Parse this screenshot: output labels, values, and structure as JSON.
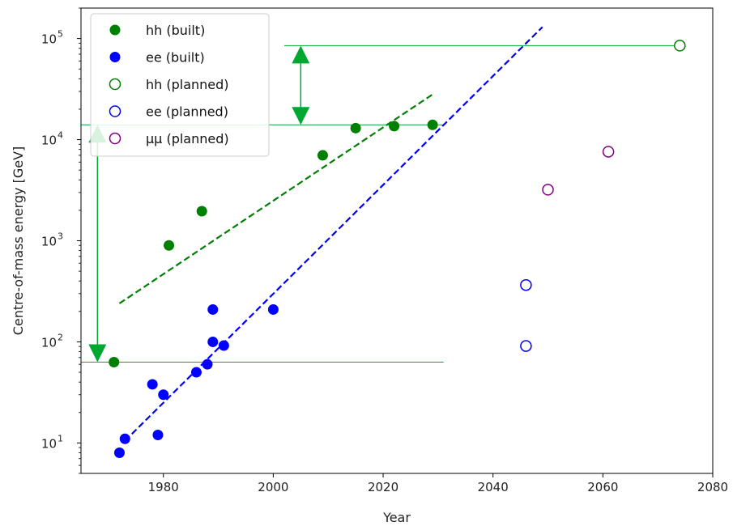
{
  "chart_data": {
    "type": "scatter",
    "xlabel": "Year",
    "ylabel": "Centre-of-mass energy [GeV]",
    "xlim": [
      1965,
      2080
    ],
    "ylim": [
      5,
      200000
    ],
    "yscale": "log",
    "grid": false,
    "legend_position": "top-left",
    "x_ticks": [
      {
        "value": 1980,
        "label": "1980"
      },
      {
        "value": 2000,
        "label": "2000"
      },
      {
        "value": 2020,
        "label": "2020"
      },
      {
        "value": 2040,
        "label": "2040"
      },
      {
        "value": 2060,
        "label": "2060"
      },
      {
        "value": 2080,
        "label": "2080"
      }
    ],
    "y_ticks": [
      {
        "value": 10,
        "base": "10",
        "exp": "1"
      },
      {
        "value": 100,
        "base": "10",
        "exp": "2"
      },
      {
        "value": 1000,
        "base": "10",
        "exp": "3"
      },
      {
        "value": 10000,
        "base": "10",
        "exp": "4"
      },
      {
        "value": 100000,
        "base": "10",
        "exp": "5"
      }
    ],
    "series": [
      {
        "name": "hh (built)",
        "marker": "filled",
        "color": "#008000",
        "points": [
          [
            1971,
            63
          ],
          [
            1981,
            900
          ],
          [
            1987,
            1960
          ],
          [
            2009,
            7000
          ],
          [
            2015,
            13000
          ],
          [
            2022,
            13600
          ],
          [
            2029,
            14000
          ]
        ]
      },
      {
        "name": "ee (built)",
        "marker": "filled",
        "color": "#0000ff",
        "points": [
          [
            1972,
            8
          ],
          [
            1973,
            11
          ],
          [
            1978,
            38
          ],
          [
            1979,
            12
          ],
          [
            1980,
            30
          ],
          [
            1986,
            50
          ],
          [
            1988,
            60
          ],
          [
            1989,
            100
          ],
          [
            1989,
            209
          ],
          [
            1991,
            92
          ],
          [
            2000,
            209
          ]
        ]
      },
      {
        "name": "hh (planned)",
        "marker": "open",
        "color": "#008000",
        "points": [
          [
            2074,
            85000
          ]
        ]
      },
      {
        "name": "ee (planned)",
        "marker": "open",
        "color": "#0000ff",
        "points": [
          [
            2046,
            91
          ],
          [
            2046,
            365
          ]
        ]
      },
      {
        "name": "μμ (planned)",
        "marker": "open",
        "color": "#800080",
        "points": [
          [
            2050,
            3200
          ],
          [
            2061,
            7600
          ]
        ]
      }
    ],
    "trend_lines": [
      {
        "series": "hh (built)",
        "color": "#008000",
        "from": [
          1972,
          240
        ],
        "to": [
          2029,
          28000
        ]
      },
      {
        "series": "ee (built)",
        "color": "#0000ff",
        "from": [
          1973,
          10.5
        ],
        "to": [
          2049,
          130000
        ]
      }
    ],
    "annotations": [
      {
        "type": "hline",
        "y": 85000,
        "x_from": 2002,
        "x_to": 2075,
        "color": "#00a832"
      },
      {
        "type": "hline",
        "y": 14000,
        "x_from": 1965,
        "x_to": 2031,
        "color": "#00a832"
      },
      {
        "type": "hline",
        "y": 63,
        "x_from": 1965,
        "x_to": 2031,
        "color": "#00a832"
      },
      {
        "type": "double-arrow",
        "x": 2005,
        "y_from": 85000,
        "y_to": 14000,
        "color": "#00a832"
      },
      {
        "type": "double-arrow",
        "x": 1968,
        "y_from": 14000,
        "y_to": 63,
        "color": "#00a832"
      }
    ]
  }
}
